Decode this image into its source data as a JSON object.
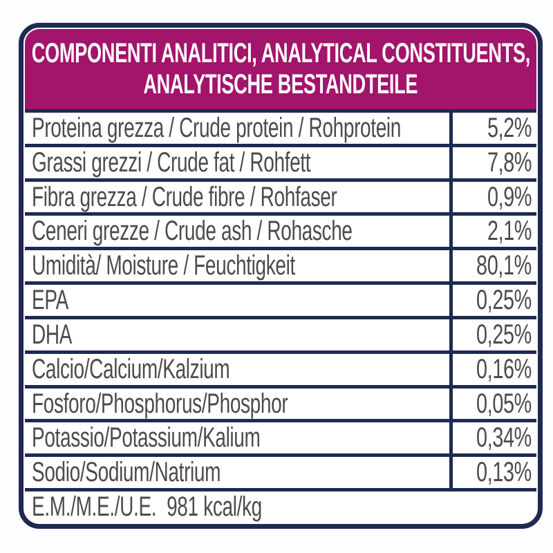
{
  "panel": {
    "header": {
      "line1": "COMPONENTI ANALITICI, ANALYTICAL CONSTITUENTS,",
      "line2": "ANALYTISCHE BESTANDTEILE"
    },
    "table": {
      "rows": [
        {
          "label": "Proteina grezza / Crude protein / Rohprotein",
          "value": "5,2%"
        },
        {
          "label": "Grassi grezzi / Crude fat / Rohfett",
          "value": "7,8%"
        },
        {
          "label": "Fibra grezza / Crude fibre / Rohfaser",
          "value": "0,9%"
        },
        {
          "label": "Ceneri grezze / Crude ash / Rohasche",
          "value": "2,1%"
        },
        {
          "label": "Umidità/ Moisture / Feuchtigkeit",
          "value": "80,1%"
        },
        {
          "label": "EPA",
          "value": "0,25%"
        },
        {
          "label": "DHA",
          "value": "0,25%"
        },
        {
          "label": "Calcio/Calcium/Kalzium",
          "value": "0,16%"
        },
        {
          "label": "Fosforo/Phosphorus/Phosphor",
          "value": "0,05%"
        },
        {
          "label": "Potassio/Potassium/Kalium",
          "value": "0,34%"
        },
        {
          "label": "Sodio/Sodium/Natrium",
          "value": "0,13%"
        }
      ],
      "footer": "E.M./M.E./U.E.  981 kcal/kg"
    }
  },
  "colors": {
    "header_background": "#A3146B",
    "border_navy": "#1E2A52",
    "row_text_gray": "#4B4B4D",
    "header_text": "#FFFFFF",
    "cell_background": "#FFFFFF"
  }
}
